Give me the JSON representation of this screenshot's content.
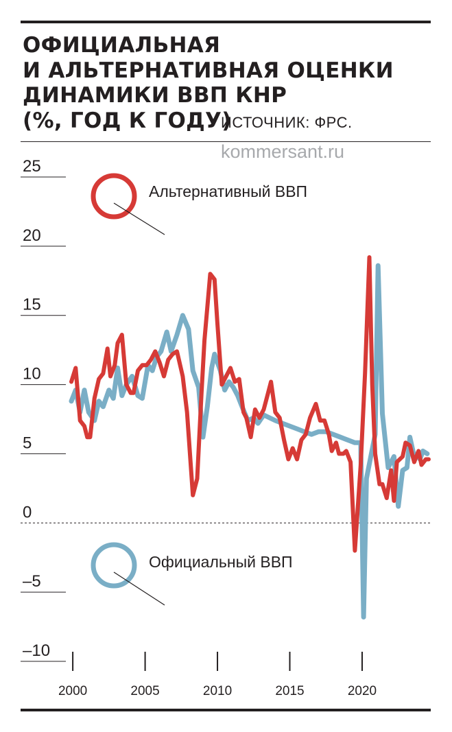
{
  "header": {
    "title_lines": [
      "ОФИЦИАЛЬНАЯ",
      "И АЛЬТЕРНАТИВНАЯ ОЦЕНКИ",
      "ДИНАМИКИ ВВП КНР",
      "(%, ГОД К ГОДУ)"
    ],
    "source": "ИСТОЧНИК: ФРС.",
    "watermark": "kommersant.ru"
  },
  "colors": {
    "official": "#7aaec6",
    "alternative": "#d63a36",
    "text": "#231f20"
  },
  "chart_data": {
    "type": "line",
    "title": "ОФИЦИАЛЬНАЯ И АЛЬТЕРНАТИВНАЯ ОЦЕНКИ ДИНАМИКИ ВВП КНР (%, ГОД К ГОДУ)",
    "xlabel": "",
    "ylabel": "",
    "ylim": [
      -10,
      25
    ],
    "xlim": [
      1999.9,
      2024.6
    ],
    "y_ticks": [
      "25",
      "20",
      "15",
      "10",
      "5",
      "0",
      "–5",
      "–10"
    ],
    "x_ticks": [
      "2000",
      "2005",
      "2010",
      "2015",
      "2020"
    ],
    "zero_line": "dashed",
    "series": [
      {
        "name": "Официальный ВВП",
        "x": [
          1999.9,
          2000.2,
          2000.5,
          2000.8,
          2001.1,
          2001.5,
          2001.8,
          2002.1,
          2002.5,
          2002.8,
          2003.1,
          2003.4,
          2003.7,
          2004.1,
          2004.5,
          2004.8,
          2005.2,
          2005.5,
          2005.8,
          2006.1,
          2006.5,
          2006.8,
          2007.2,
          2007.6,
          2008.0,
          2008.3,
          2008.7,
          2009.0,
          2009.3,
          2009.6,
          2009.8,
          2010.2,
          2010.5,
          2010.8,
          2011.1,
          2011.4,
          2011.7,
          2012.1,
          2012.5,
          2012.8,
          2013.2,
          2013.6,
          2014.0,
          2014.5,
          2015.0,
          2015.5,
          2016.0,
          2016.5,
          2017.0,
          2017.5,
          2018.0,
          2018.5,
          2019.0,
          2019.5,
          2019.9,
          2020.1,
          2020.3,
          2020.6,
          2020.9,
          2021.1,
          2021.4,
          2021.8,
          2022.2,
          2022.5,
          2022.8,
          2023.1,
          2023.3,
          2023.6,
          2023.8,
          2024.0,
          2024.2,
          2024.5
        ],
        "values": [
          8.8,
          9.6,
          8.0,
          9.6,
          8.0,
          7.4,
          8.8,
          8.4,
          9.6,
          9.0,
          11.2,
          9.2,
          10.0,
          10.6,
          9.2,
          9.0,
          11.4,
          11.0,
          12.0,
          12.4,
          13.8,
          12.4,
          13.6,
          15.0,
          14.0,
          11.0,
          9.8,
          6.2,
          8.4,
          11.2,
          12.2,
          11.0,
          9.6,
          10.2,
          9.8,
          9.2,
          8.4,
          7.4,
          7.6,
          7.2,
          7.8,
          7.6,
          7.4,
          7.2,
          7.0,
          6.8,
          6.6,
          6.4,
          6.6,
          6.6,
          6.4,
          6.2,
          6.0,
          5.8,
          5.8,
          -6.8,
          3.2,
          4.8,
          6.4,
          18.6,
          7.9,
          4.0,
          4.8,
          1.2,
          3.8,
          4.0,
          6.2,
          4.8,
          5.0,
          4.6,
          5.2,
          5.0
        ]
      },
      {
        "name": "Альтернативный ВВП",
        "x": [
          1999.9,
          2000.2,
          2000.5,
          2000.8,
          2001.0,
          2001.2,
          2001.5,
          2001.8,
          2002.1,
          2002.4,
          2002.6,
          2002.9,
          2003.1,
          2003.4,
          2003.7,
          2004.0,
          2004.2,
          2004.5,
          2004.8,
          2005.1,
          2005.4,
          2005.7,
          2006.0,
          2006.3,
          2006.6,
          2006.9,
          2007.2,
          2007.6,
          2007.9,
          2008.3,
          2008.6,
          2008.9,
          2009.1,
          2009.5,
          2009.8,
          2010.0,
          2010.3,
          2010.6,
          2010.9,
          2011.2,
          2011.5,
          2011.8,
          2012.0,
          2012.3,
          2012.6,
          2012.9,
          2013.2,
          2013.5,
          2013.7,
          2014.0,
          2014.3,
          2014.6,
          2014.9,
          2015.2,
          2015.5,
          2015.8,
          2016.1,
          2016.4,
          2016.8,
          2017.1,
          2017.4,
          2017.7,
          2017.9,
          2018.2,
          2018.4,
          2018.7,
          2018.9,
          2019.2,
          2019.5,
          2019.9,
          2020.2,
          2020.5,
          2020.7,
          2020.9,
          2021.2,
          2021.4,
          2021.7,
          2022.0,
          2022.2,
          2022.4,
          2022.6,
          2022.8,
          2023.0,
          2023.3,
          2023.6,
          2023.9,
          2024.1,
          2024.4,
          2024.6
        ],
        "values": [
          10.2,
          11.2,
          7.4,
          7.0,
          6.2,
          6.2,
          9.0,
          10.4,
          10.8,
          12.6,
          10.6,
          11.4,
          13.0,
          13.6,
          10.0,
          9.4,
          9.4,
          11.0,
          11.4,
          11.4,
          11.8,
          12.4,
          11.6,
          10.6,
          11.8,
          12.2,
          12.4,
          10.6,
          8.0,
          2.0,
          3.2,
          9.4,
          13.2,
          18.0,
          17.6,
          14.4,
          10.0,
          10.6,
          11.2,
          10.2,
          10.4,
          8.0,
          7.6,
          6.2,
          8.2,
          7.6,
          8.2,
          9.4,
          10.2,
          8.0,
          7.6,
          6.0,
          4.6,
          5.4,
          4.6,
          6.0,
          6.4,
          7.6,
          8.6,
          7.4,
          7.4,
          6.4,
          5.2,
          5.8,
          5.0,
          5.0,
          5.2,
          4.4,
          -2.0,
          4.2,
          10.8,
          19.2,
          10.0,
          5.0,
          2.8,
          2.8,
          1.8,
          3.8,
          1.6,
          4.4,
          4.6,
          4.8,
          5.8,
          5.6,
          4.4,
          5.2,
          4.2,
          4.6,
          4.6
        ]
      }
    ],
    "legend": [
      {
        "series": "Альтернативный ВВП",
        "placement": "upper-left, inside plot"
      },
      {
        "series": "Официальный ВВП",
        "placement": "lower-left, inside plot"
      }
    ]
  }
}
